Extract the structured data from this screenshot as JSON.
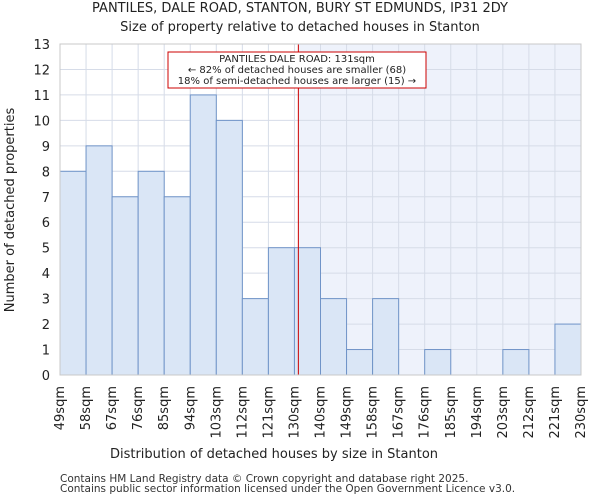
{
  "chart_data": {
    "type": "bar",
    "title": "PANTILES, DALE ROAD, STANTON, BURY ST EDMUNDS, IP31 2DY",
    "subtitle": "Size of property relative to detached houses in Stanton",
    "xlabel": "Distribution of detached houses by size in Stanton",
    "ylabel": "Number of detached properties",
    "bin_edges": [
      "49sqm",
      "58sqm",
      "67sqm",
      "76sqm",
      "85sqm",
      "94sqm",
      "103sqm",
      "112sqm",
      "121sqm",
      "130sqm",
      "140sqm",
      "149sqm",
      "158sqm",
      "167sqm",
      "176sqm",
      "185sqm",
      "194sqm",
      "203sqm",
      "212sqm",
      "221sqm",
      "230sqm"
    ],
    "values": [
      8,
      9,
      7,
      8,
      7,
      11,
      10,
      3,
      5,
      5,
      3,
      1,
      3,
      0,
      1,
      0,
      0,
      1,
      0,
      2
    ],
    "ylim": [
      0,
      13
    ],
    "yticks": [
      0,
      1,
      2,
      3,
      4,
      5,
      6,
      7,
      8,
      9,
      10,
      11,
      12,
      13
    ],
    "grid": true,
    "marker_value": 131,
    "marker_position_bins": 9.15,
    "colors": {
      "bar_fill": "#dae6f6",
      "bar_stroke": "#7094c8",
      "highlight_bg": "#eef2fb",
      "marker_line": "#cc0000",
      "grid": "#d6dce8",
      "box_stroke": "#cc0000"
    },
    "annotation": {
      "line1": "PANTILES DALE ROAD: 131sqm",
      "line2": "← 82% of detached houses are smaller (68)",
      "line3": "18% of semi-detached houses are larger (15) →"
    }
  },
  "footer": {
    "line1": "Contains HM Land Registry data © Crown copyright and database right 2025.",
    "line2": "Contains public sector information licensed under the Open Government Licence v3.0."
  }
}
